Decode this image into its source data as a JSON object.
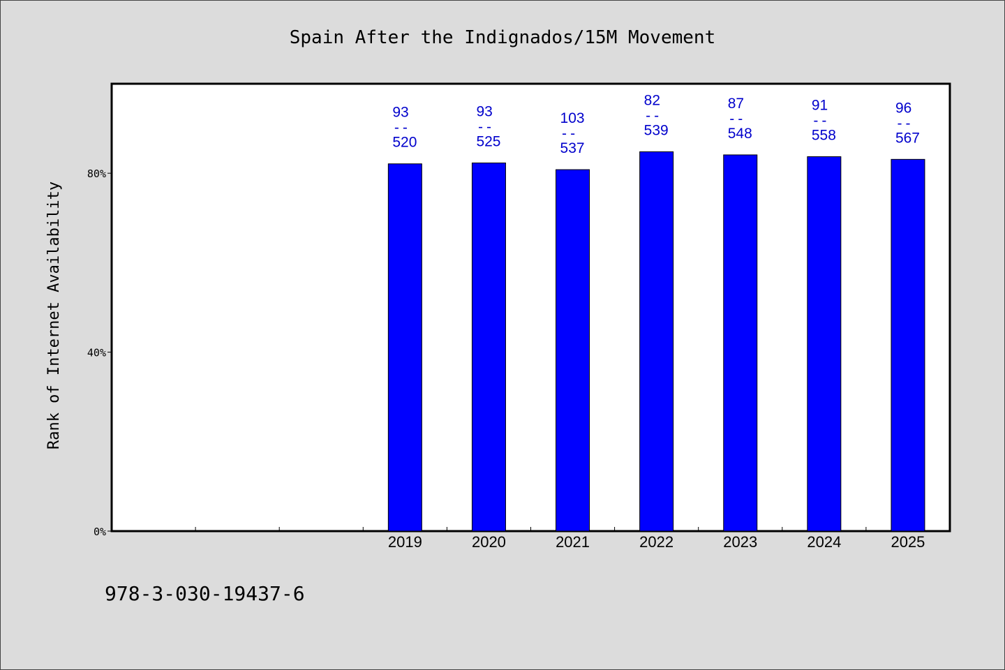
{
  "chart_data": {
    "type": "bar",
    "title": "Spain After the Indignados/15M Movement",
    "ylabel": "Rank of Internet Availability",
    "xlabel": "",
    "categories": [
      "",
      "",
      "",
      "2019",
      "2020",
      "2021",
      "2022",
      "2023",
      "2024",
      "2025"
    ],
    "values": [
      null,
      null,
      null,
      82.1,
      82.3,
      80.8,
      84.8,
      84.1,
      83.7,
      83.1
    ],
    "bar_labels": [
      null,
      null,
      null,
      {
        "top": "93",
        "sep": "--",
        "bottom": "520"
      },
      {
        "top": "93",
        "sep": "--",
        "bottom": "525"
      },
      {
        "top": "103",
        "sep": "--",
        "bottom": "537"
      },
      {
        "top": "82",
        "sep": "--",
        "bottom": "539"
      },
      {
        "top": "87",
        "sep": "--",
        "bottom": "548"
      },
      {
        "top": "91",
        "sep": "--",
        "bottom": "558"
      },
      {
        "top": "96",
        "sep": "--",
        "bottom": "567"
      }
    ],
    "yticks": [
      {
        "value": 0,
        "label": "0%"
      },
      {
        "value": 40,
        "label": "40%"
      },
      {
        "value": 80,
        "label": "80%"
      }
    ],
    "ylim": [
      0,
      100
    ],
    "grid": false,
    "legend": "none",
    "bar_color": "#0000ff",
    "label_color": "#0000cc",
    "plot_background": "#ffffff",
    "figure_background": "#dcdcdc"
  },
  "footer": {
    "code": "978-3-030-19437-6"
  }
}
